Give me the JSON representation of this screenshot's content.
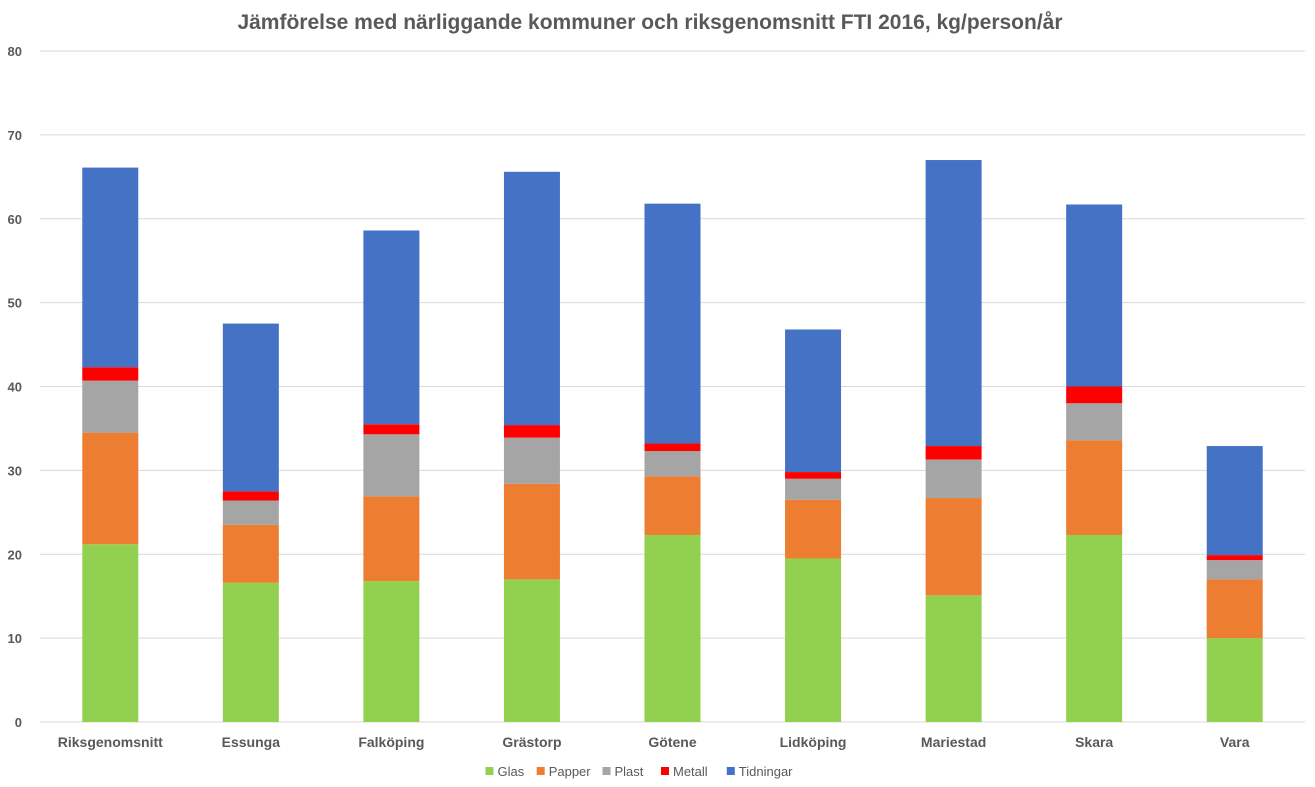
{
  "chart_data": {
    "type": "bar",
    "stacked": true,
    "title": "Jämförelse med närliggande kommuner och riksgenomsnitt FTI 2016, kg/person/år",
    "xlabel": "",
    "ylabel": "",
    "ylim": [
      0,
      80
    ],
    "yticks": [
      "0",
      "10",
      "20",
      "30",
      "40",
      "50",
      "60",
      "70",
      "80"
    ],
    "grid": true,
    "legend_position": "bottom",
    "categories": [
      "Riksgenomsnitt",
      "Essunga",
      "Falköping",
      "Grästorp",
      "Götene",
      "Lidköping",
      "Mariestad",
      "Skara",
      "Vara"
    ],
    "series": [
      {
        "name": "Glas",
        "color": "#92d050",
        "values": [
          21.2,
          16.6,
          16.8,
          17.0,
          22.3,
          19.5,
          15.1,
          22.3,
          10.0
        ]
      },
      {
        "name": "Papper",
        "color": "#ed7d31",
        "values": [
          13.3,
          6.9,
          10.1,
          11.4,
          7.0,
          7.0,
          11.6,
          11.3,
          7.0
        ]
      },
      {
        "name": "Plast",
        "color": "#a5a5a5",
        "values": [
          6.2,
          2.9,
          7.4,
          5.5,
          3.0,
          2.5,
          4.6,
          4.4,
          2.3
        ]
      },
      {
        "name": "Metall",
        "color": "#ff0000",
        "values": [
          1.6,
          1.1,
          1.2,
          1.5,
          0.9,
          0.8,
          1.6,
          2.0,
          0.6
        ]
      },
      {
        "name": "Tidningar",
        "color": "#4472c4",
        "values": [
          23.8,
          20.0,
          23.1,
          30.2,
          28.6,
          17.0,
          34.1,
          21.7,
          13.0
        ]
      }
    ]
  }
}
